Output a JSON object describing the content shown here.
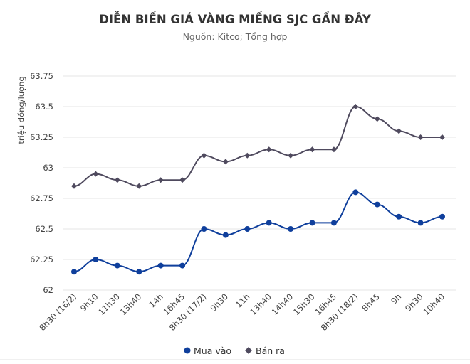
{
  "chart_data": {
    "type": "line",
    "title": "DIỄN BIẾN GIÁ VÀNG MIẾNG SJC GẦN ĐÂY",
    "subtitle": "Nguồn: Kitco; Tổng hợp",
    "ylabel": "triệu đồng/lượng",
    "xlabel": "",
    "ylim": [
      62,
      63.75
    ],
    "yticks": [
      "62",
      "62.25",
      "62.5",
      "62.75",
      "63",
      "63.25",
      "63.5",
      "63.75"
    ],
    "grid": true,
    "legend_position": "bottom",
    "categories": [
      "8h30 (16/2)",
      "9h10",
      "11h30",
      "13h40",
      "14h",
      "16h45",
      "8h30 (17/2)",
      "9h30",
      "11h",
      "13h40",
      "14h40",
      "15h30",
      "16h45",
      "8h30 (18/2)",
      "8h45",
      "9h",
      "9h30",
      "10h40"
    ],
    "series": [
      {
        "name": "Mua vào",
        "color": "#0f3f9c",
        "marker": "circle",
        "values": [
          62.15,
          62.25,
          62.2,
          62.15,
          62.2,
          62.2,
          62.5,
          62.45,
          62.5,
          62.55,
          62.5,
          62.55,
          62.55,
          62.8,
          62.7,
          62.6,
          62.55,
          62.6
        ]
      },
      {
        "name": "Bán ra",
        "color": "#4f4a5e",
        "marker": "diamond",
        "values": [
          62.85,
          62.95,
          62.9,
          62.85,
          62.9,
          62.9,
          63.1,
          63.05,
          63.1,
          63.15,
          63.1,
          63.15,
          63.15,
          63.5,
          63.4,
          63.3,
          63.25,
          63.25
        ]
      }
    ]
  }
}
